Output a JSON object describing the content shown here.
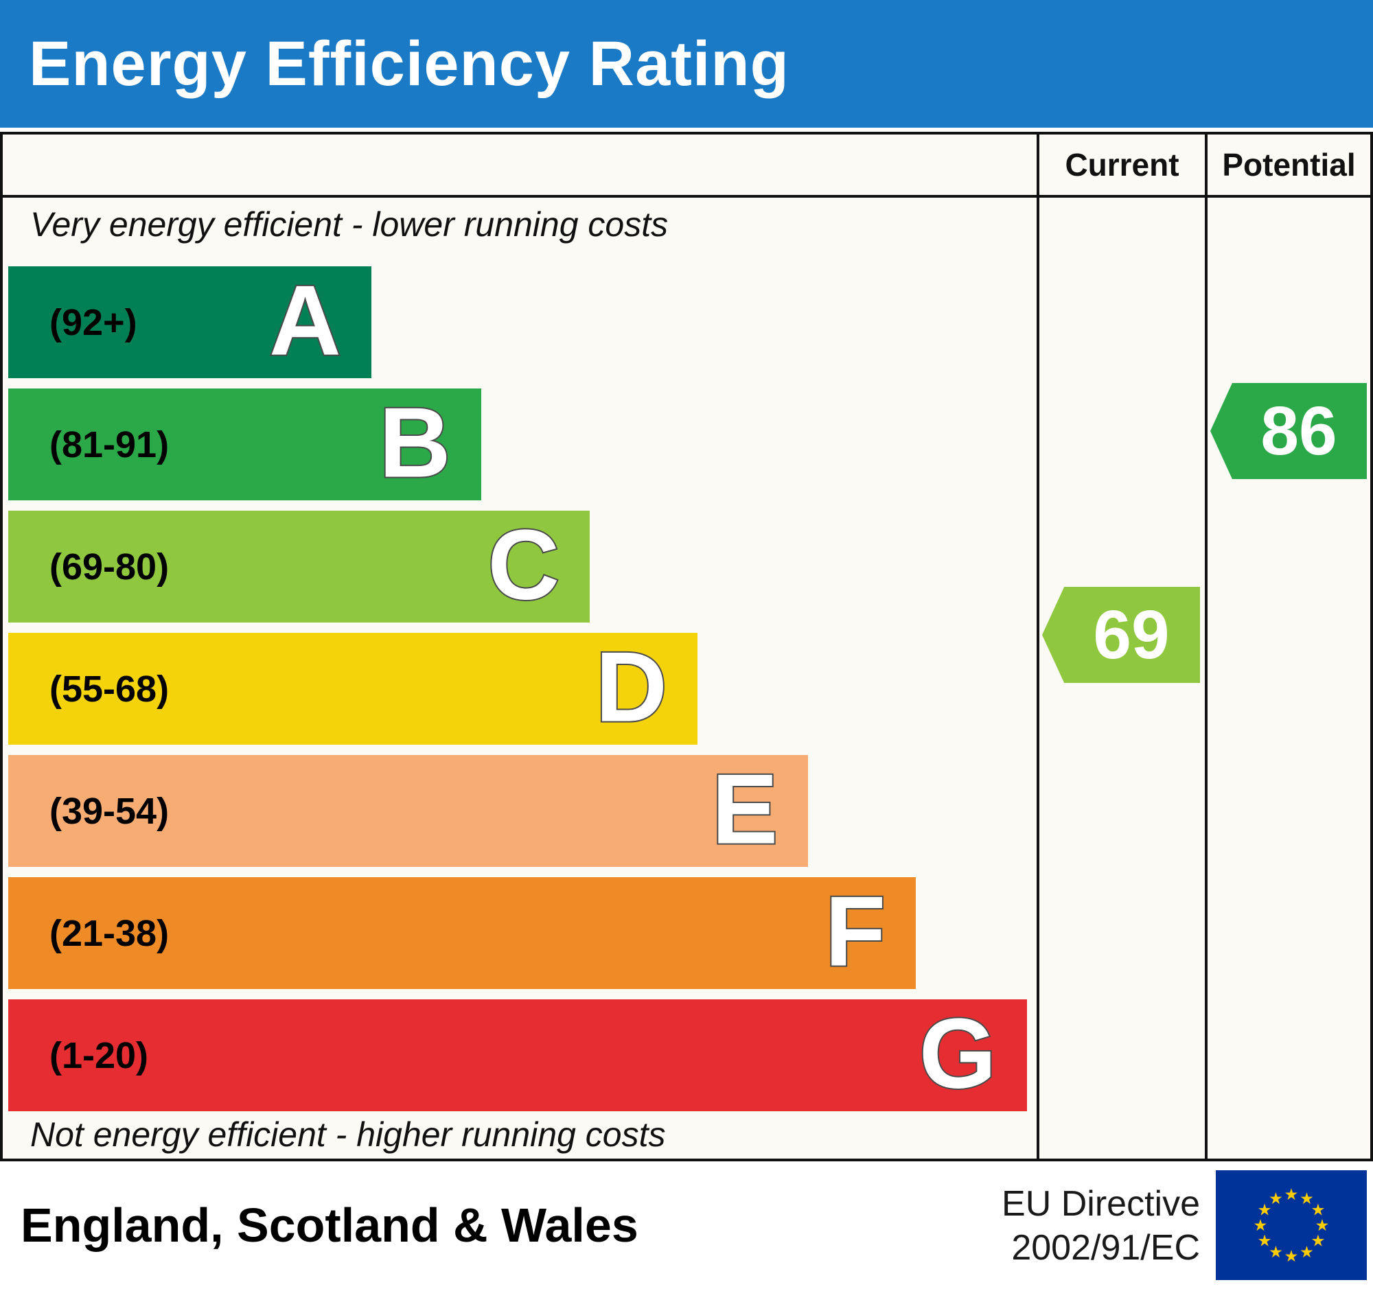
{
  "title": "Energy Efficiency Rating",
  "columns": {
    "current": "Current",
    "potential": "Potential"
  },
  "notes": {
    "top": "Very energy efficient - lower running costs",
    "bottom": "Not energy efficient - higher running costs"
  },
  "footer": {
    "region": "England, Scotland & Wales",
    "directive_line1": "EU Directive",
    "directive_line2": "2002/91/EC"
  },
  "colors": {
    "header_bar": "#1b7ac5",
    "eu_flag_blue": "#003399",
    "eu_flag_star": "#ffcc00"
  },
  "chart_data": {
    "type": "bar",
    "title": "Energy Efficiency Rating",
    "categories": [
      "A",
      "B",
      "C",
      "D",
      "E",
      "F",
      "G"
    ],
    "bands": [
      {
        "letter": "A",
        "range": "(92+)",
        "color": "#008054",
        "width_pct": 35.4
      },
      {
        "letter": "B",
        "range": "(81-91)",
        "color": "#2ba949",
        "width_pct": 46.1
      },
      {
        "letter": "C",
        "range": "(69-80)",
        "color": "#8fc73e",
        "width_pct": 56.7
      },
      {
        "letter": "D",
        "range": "(55-68)",
        "color": "#f5d30b",
        "width_pct": 67.2
      },
      {
        "letter": "E",
        "range": "(39-54)",
        "color": "#f7ac74",
        "width_pct": 78.0
      },
      {
        "letter": "F",
        "range": "(21-38)",
        "color": "#ef8b26",
        "width_pct": 88.5
      },
      {
        "letter": "G",
        "range": "(1-20)",
        "color": "#e52d32",
        "width_pct": 99.3
      }
    ],
    "current": {
      "value": 69,
      "band": "C",
      "color": "#8fc73e"
    },
    "potential": {
      "value": 86,
      "band": "B",
      "color": "#2ba949"
    }
  }
}
